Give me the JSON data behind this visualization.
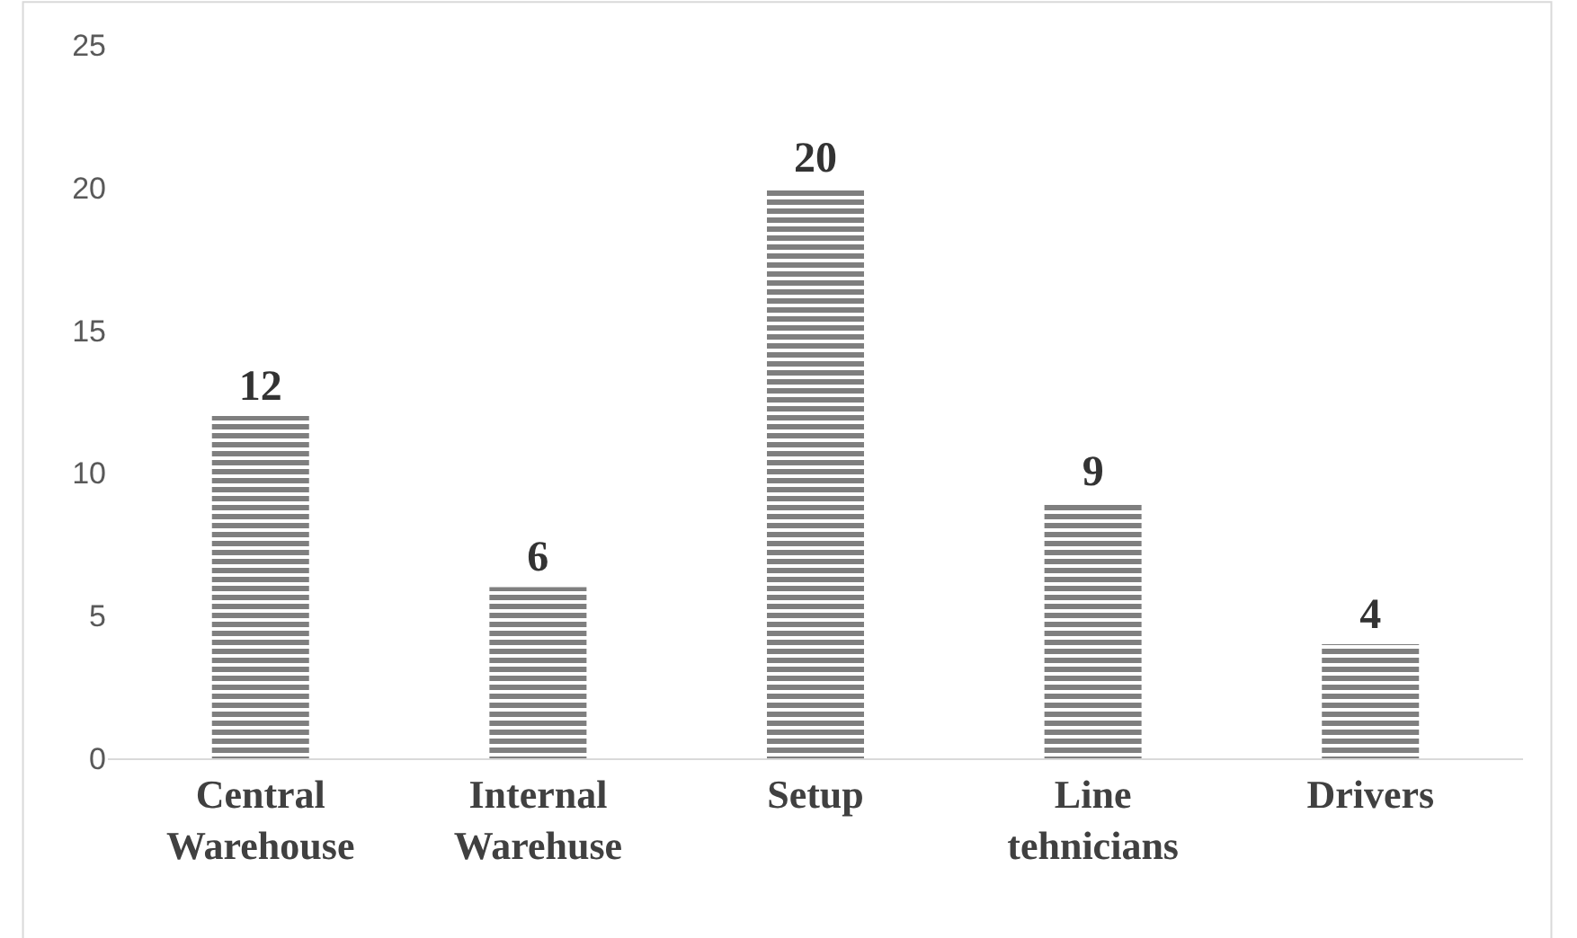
{
  "chart_data": {
    "type": "bar",
    "categories": [
      "Central Warehouse",
      "Internal Warehuse",
      "Setup",
      "Line tehnicians",
      "Drivers"
    ],
    "values": [
      12,
      6,
      20,
      9,
      4
    ],
    "color": "#7f7f7f",
    "ylim": [
      0,
      25
    ],
    "yticks": [
      0,
      5,
      10,
      15,
      20,
      25
    ],
    "grid": false,
    "data_labels": true
  }
}
